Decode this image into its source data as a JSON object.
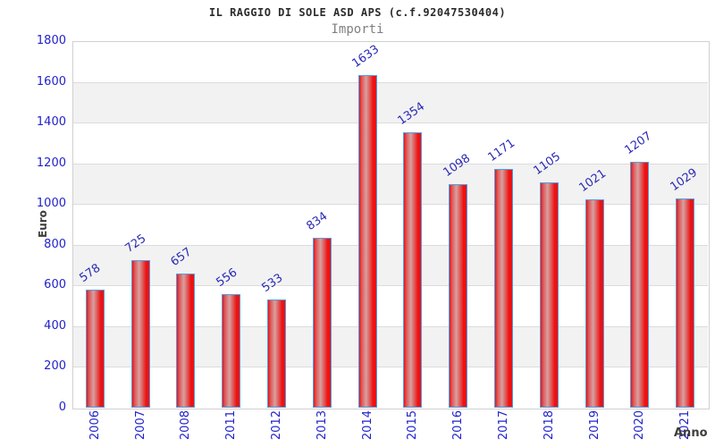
{
  "header": {
    "title": "IL RAGGIO DI SOLE ASD APS (c.f.92047530404)",
    "subtitle": "Importi"
  },
  "chart_data": {
    "type": "bar",
    "title": "IL RAGGIO DI SOLE ASD APS (c.f.92047530404)",
    "subtitle": "Importi",
    "xlabel": "Anno",
    "ylabel": "Euro",
    "categories": [
      "2006",
      "2007",
      "2008",
      "2011",
      "2012",
      "2013",
      "2014",
      "2015",
      "2016",
      "2017",
      "2018",
      "2019",
      "2020",
      "2021"
    ],
    "values": [
      578,
      725,
      657,
      556,
      533,
      834,
      1633,
      1354,
      1098,
      1171,
      1105,
      1021,
      1207,
      1029
    ],
    "ylim": [
      0,
      1800
    ],
    "ytick_step": 200,
    "grid": "horizontal gridlines every 200 with alternating shaded bands",
    "legend": "none",
    "value_labels": "shown above bars, rotated"
  },
  "colors": {
    "bar_red": "#ee1111",
    "bar_highlight": "#d8a0a0",
    "bar_mid": "#e05555",
    "bar_border": "#4d9fe8",
    "tick_blue": "#2222cc",
    "value_label_blue": "#2a2ab5",
    "band_gray": "#f2f2f2",
    "band_white": "#ffffff",
    "grid_line": "#dcdcdc",
    "plot_border": "#d0d0d0",
    "title_color": "#2b2b2b",
    "subtitle_color": "#808080",
    "axis_title_color": "#3d3d3d"
  }
}
